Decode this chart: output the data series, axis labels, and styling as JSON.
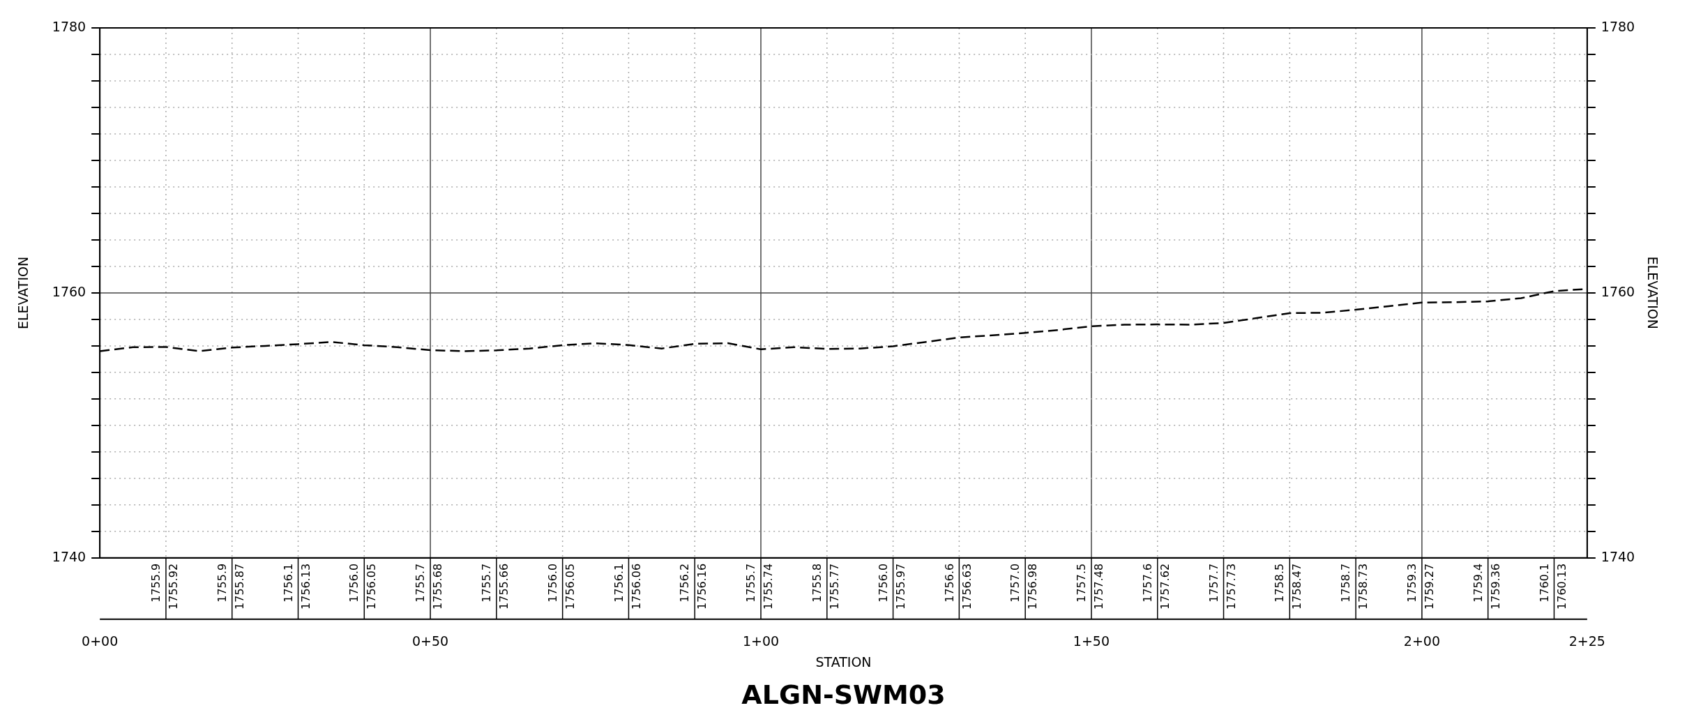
{
  "chart_data": {
    "type": "line",
    "title": "ALGN-SWM03",
    "xlabel": "STATION",
    "ylabel": "ELEVATION",
    "y2label": "ELEVATION",
    "categories": [
      "0+00",
      null,
      null,
      null,
      null,
      null,
      null,
      null,
      null,
      null,
      "0+50",
      null,
      null,
      null,
      null,
      null,
      null,
      null,
      null,
      null,
      "1+00",
      null,
      null,
      null,
      null,
      null,
      null,
      null,
      null,
      null,
      "1+50",
      null,
      null,
      null,
      null,
      null,
      null,
      null,
      null,
      null,
      "2+00",
      null,
      null,
      null,
      null,
      "2+25"
    ],
    "ylim": [
      1740,
      1780
    ],
    "yticks": [
      1740,
      {
        "value": 1742,
        "label": null
      },
      {
        "value": 1744,
        "label": null
      },
      {
        "value": 1746,
        "label": null
      },
      {
        "value": 1748,
        "label": null
      },
      {
        "value": 1750,
        "label": null
      },
      {
        "value": 1752,
        "label": null
      },
      {
        "value": 1754,
        "label": null
      },
      {
        "value": 1756,
        "label": null
      },
      {
        "value": 1758,
        "label": null
      },
      1760,
      {
        "value": 1762,
        "label": null
      },
      {
        "value": 1764,
        "label": null
      },
      {
        "value": 1766,
        "label": null
      },
      {
        "value": 1768,
        "label": null
      },
      {
        "value": 1770,
        "label": null
      },
      {
        "value": 1772,
        "label": null
      },
      {
        "value": 1774,
        "label": null
      },
      {
        "value": 1776,
        "label": null
      },
      {
        "value": 1778,
        "label": null
      },
      1780
    ],
    "y2lim": [
      1740,
      1780
    ],
    "y2ticks": [
      1740,
      {
        "value": 1742,
        "label": null
      },
      {
        "value": 1744,
        "label": null
      },
      {
        "value": 1746,
        "label": null
      },
      {
        "value": 1748,
        "label": null
      },
      {
        "value": 1750,
        "label": null
      },
      {
        "value": 1752,
        "label": null
      },
      {
        "value": 1754,
        "label": null
      },
      {
        "value": 1756,
        "label": null
      },
      {
        "value": 1758,
        "label": null
      },
      1760,
      {
        "value": 1762,
        "label": null
      },
      {
        "value": 1764,
        "label": null
      },
      {
        "value": 1766,
        "label": null
      },
      {
        "value": 1768,
        "label": null
      },
      {
        "value": 1770,
        "label": null
      },
      {
        "value": 1772,
        "label": null
      },
      {
        "value": 1774,
        "label": null
      },
      {
        "value": 1776,
        "label": null
      },
      {
        "value": 1778,
        "label": null
      },
      1780
    ],
    "grid": true,
    "legend": false,
    "marker": "none",
    "line_style": "dashed",
    "series": [
      {
        "color": "#000000",
        "values": [
          1755.6,
          1755.9,
          1755.92,
          1755.6,
          1755.87,
          1756.0,
          1756.13,
          1756.3,
          1756.05,
          1755.9,
          1755.68,
          1755.6,
          1755.66,
          1755.8,
          1756.05,
          1756.2,
          1756.06,
          1755.8,
          1756.16,
          1756.2,
          1755.74,
          1755.9,
          1755.77,
          1755.8,
          1755.97,
          1756.3,
          1756.63,
          1756.8,
          1756.98,
          1757.2,
          1757.48,
          1757.6,
          1757.62,
          1757.6,
          1757.73,
          1758.1,
          1758.47,
          1758.5,
          1758.73,
          1759.0,
          1759.27,
          1759.3,
          1759.36,
          1759.6,
          1760.13,
          1760.3
        ],
        "value_labels": [
          null,
          null,
          "1755.92",
          null,
          "1755.87",
          null,
          "1756.13",
          null,
          "1756.05",
          null,
          "1755.68",
          null,
          "1755.66",
          null,
          "1756.05",
          null,
          "1756.06",
          null,
          "1756.16",
          null,
          "1755.74",
          null,
          "1755.77",
          null,
          "1755.97",
          null,
          "1756.63",
          null,
          "1756.98",
          null,
          "1757.48",
          null,
          "1757.62",
          null,
          "1757.73",
          null,
          "1758.47",
          null,
          "1758.73",
          null,
          "1759.27",
          null,
          "1759.36",
          null,
          "1760.13",
          null
        ]
      }
    ],
    "annotations": [
      "1755.9",
      "1755.9",
      "1756.1",
      "1756.0",
      "1755.7",
      "1755.7",
      "1756.0",
      "1756.1",
      "1756.2",
      "1755.7",
      "1755.8",
      "1756.0",
      "1756.6",
      "1757.0",
      "1757.5",
      "1757.6",
      "1757.7",
      "1758.5",
      "1758.7",
      "1759.3",
      "1759.4",
      "1760.1"
    ]
  }
}
